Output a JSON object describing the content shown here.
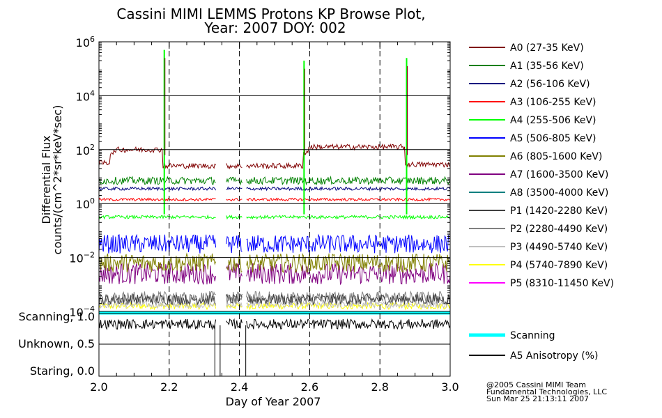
{
  "chart_data": {
    "type": "line",
    "title": "Cassini MIMI LEMMS Protons KP Browse Plot,",
    "subtitle": "Year: 2007 DOY: 002",
    "xlabel": "Day of Year 2007",
    "ylabel_line1": "Differential Flux",
    "ylabel_line2": "counts/(cm^2*sr*keV*sec)",
    "x_ticks": [
      "2.0",
      "2.2",
      "2.4",
      "2.6",
      "2.8",
      "3.0"
    ],
    "xlim": [
      2.0,
      3.0
    ],
    "ylim_log10": [
      -4,
      6
    ],
    "y_ticks": [
      {
        "exp": 6,
        "base": "10",
        "sup": "6"
      },
      {
        "exp": 4,
        "base": "10",
        "sup": "4"
      },
      {
        "exp": 2,
        "base": "10",
        "sup": "2"
      },
      {
        "exp": 0,
        "base": "10",
        "sup": "0"
      },
      {
        "exp": -2,
        "base": "10",
        "sup": "−2"
      },
      {
        "exp": -4,
        "base": "10",
        "sup": "−4"
      }
    ],
    "dashed_vlines_x": [
      2.2,
      2.4,
      2.6,
      2.8
    ],
    "data_gaps": [
      [
        2.335,
        2.36
      ],
      [
        2.41,
        2.418
      ]
    ],
    "spikes_x": [
      2.186,
      2.584,
      2.876
    ],
    "spike_peaks_log10": [
      5.7,
      5.3,
      5.4
    ],
    "series": [
      {
        "name": "A0",
        "label": "A0 (27-35 KeV)",
        "color": "#800000",
        "segments": [
          [
            2.0,
            2.03,
            1.5
          ],
          [
            2.03,
            2.045,
            1.9
          ],
          [
            2.045,
            2.18,
            2.0
          ],
          [
            2.18,
            2.58,
            1.4
          ],
          [
            2.58,
            2.595,
            1.9
          ],
          [
            2.595,
            2.87,
            2.1
          ],
          [
            2.87,
            3.0,
            1.45
          ]
        ],
        "noise": 0.1
      },
      {
        "name": "A1",
        "label": "A1 (35-56 KeV)",
        "color": "#008000",
        "segments": [
          [
            2.0,
            3.0,
            0.85
          ]
        ],
        "noise": 0.14
      },
      {
        "name": "A2",
        "label": "A2 (56-106 KeV)",
        "color": "#000080",
        "segments": [
          [
            2.0,
            3.0,
            0.55
          ]
        ],
        "noise": 0.06
      },
      {
        "name": "A3",
        "label": "A3 (106-255 KeV)",
        "color": "#ff0000",
        "segments": [
          [
            2.0,
            3.0,
            0.15
          ]
        ],
        "noise": 0.05
      },
      {
        "name": "A4",
        "label": "A4 (255-506 KeV)",
        "color": "#00ff00",
        "segments": [
          [
            2.0,
            3.0,
            -0.5
          ]
        ],
        "noise": 0.06
      },
      {
        "name": "A5",
        "label": "A5 (506-805 KeV)",
        "color": "#0000ff",
        "segments": [
          [
            2.0,
            3.0,
            -1.5
          ]
        ],
        "noise": 0.35
      },
      {
        "name": "A6",
        "label": "A6 (805-1600 KeV)",
        "color": "#808000",
        "segments": [
          [
            2.0,
            3.0,
            -2.2
          ]
        ],
        "noise": 0.35
      },
      {
        "name": "A7",
        "label": "A7 (1600-3500 KeV)",
        "color": "#800080",
        "segments": [
          [
            2.0,
            3.0,
            -2.6
          ]
        ],
        "noise": 0.4
      },
      {
        "name": "A8",
        "label": "A8 (3500-4000 KeV)",
        "color": "#008080",
        "segments": [],
        "noise": 0
      },
      {
        "name": "P1",
        "label": "P1 (1420-2280 KeV)",
        "color": "#404040",
        "segments": [
          [
            2.0,
            3.0,
            -3.55
          ]
        ],
        "noise": 0.2
      },
      {
        "name": "P2",
        "label": "P2 (2280-4490 KeV)",
        "color": "#808080",
        "segments": [
          [
            2.0,
            3.0,
            -3.5
          ]
        ],
        "noise": 0.25
      },
      {
        "name": "P3",
        "label": "P3 (4490-5740 KeV)",
        "color": "#c0c0c0",
        "segments": [
          [
            2.0,
            3.0,
            -3.75
          ]
        ],
        "noise": 0.12
      },
      {
        "name": "P4",
        "label": "P4 (5740-7890 KeV)",
        "color": "#ffff00",
        "segments": [
          [
            2.0,
            3.0,
            -3.8
          ]
        ],
        "noise": 0.12
      },
      {
        "name": "P5",
        "label": "P5 (8310-11450 KeV)",
        "color": "#ff00ff",
        "segments": [],
        "noise": 0
      }
    ],
    "lower_panel": {
      "y_labels": [
        "Scanning, 1.0",
        "Unknown, 0.5",
        "Staring, 0.0"
      ],
      "scanning": {
        "label": "Scanning",
        "color": "#00ffff",
        "value": 1.0
      },
      "anisotropy": {
        "label": "A5 Anisotropy (%)",
        "color": "#000000",
        "mean": 0.82,
        "noise": 0.08
      }
    }
  },
  "credits": {
    "line1": "@2005 Cassini MIMI Team",
    "line2": "Fundamental Technologies, LLC",
    "line3": "Sun Mar 25 21:13:11 2007"
  }
}
